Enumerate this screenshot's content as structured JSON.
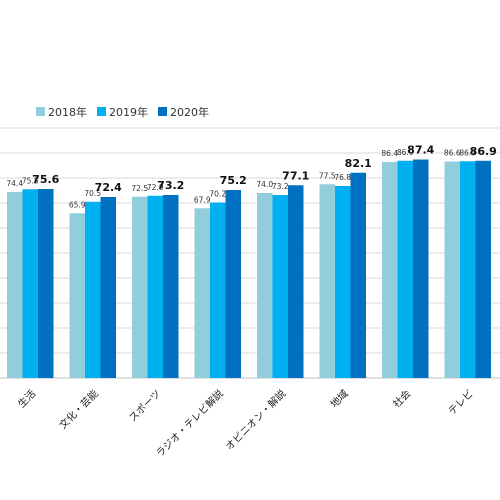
{
  "chart_data": {
    "type": "bar",
    "categories": [
      "生活",
      "文化・芸能",
      "スポーツ",
      "ラジオ・テレビ解説",
      "オピニオン・解説",
      "地域",
      "社会",
      "テレビ"
    ],
    "series": [
      {
        "name": "2018年",
        "color": "#92cddc",
        "values": [
          74.4,
          65.9,
          72.5,
          67.9,
          74.0,
          77.5,
          86.4,
          86.6
        ]
      },
      {
        "name": "2019年",
        "color": "#00b0f0",
        "values": [
          75.5,
          70.5,
          72.9,
          70.2,
          73.2,
          76.8,
          86.9,
          86.7
        ]
      },
      {
        "name": "2020年",
        "color": "#0070c0",
        "values": [
          75.6,
          72.4,
          73.2,
          75.2,
          77.1,
          82.1,
          87.4,
          86.9
        ]
      }
    ],
    "value_labels": [
      [
        "74.4",
        "65.9",
        "72.5",
        "67.9",
        "74.0",
        "77.5",
        "86.4",
        "86.6"
      ],
      [
        "75.5",
        "70.5",
        "72.9",
        "70.2",
        "73.2",
        "76.8",
        "86.9",
        "86.7"
      ],
      [
        "75.6",
        "72.4",
        "73.2",
        "75.2",
        "77.1",
        "82.1",
        "87.4",
        "86.9"
      ]
    ],
    "ylim": [
      0,
      100
    ],
    "grid": true,
    "legend_position": "top-left"
  }
}
